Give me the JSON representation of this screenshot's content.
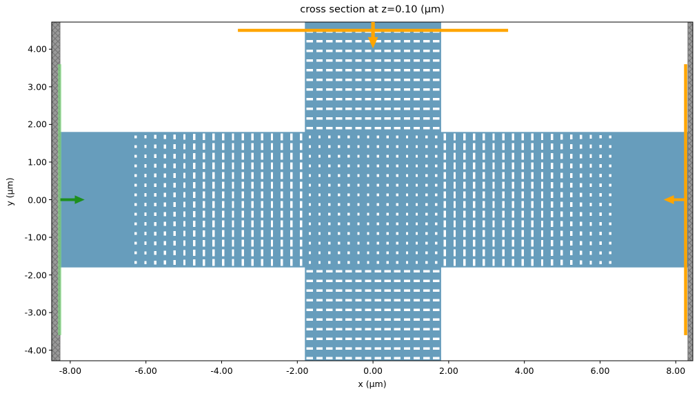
{
  "chart_data": {
    "type": "heatmap",
    "subtype": "fdtd-simulation-cross-section",
    "title": "cross section at z=0.10 (μm)",
    "xlabel": "x (μm)",
    "ylabel": "y (μm)",
    "xlim": [
      -8.49,
      8.45
    ],
    "ylim": [
      -4.28,
      4.72
    ],
    "grid": false,
    "x_ticks": [
      {
        "value": -8,
        "label": "-8.00"
      },
      {
        "value": -6,
        "label": "-6.00"
      },
      {
        "value": -4,
        "label": "-4.00"
      },
      {
        "value": -2,
        "label": "-2.00"
      },
      {
        "value": 0,
        "label": "0.00"
      },
      {
        "value": 2,
        "label": "2.00"
      },
      {
        "value": 4,
        "label": "4.00"
      },
      {
        "value": 6,
        "label": "6.00"
      },
      {
        "value": 8,
        "label": "8.00"
      }
    ],
    "y_ticks": [
      {
        "value": -4,
        "label": "-4.00"
      },
      {
        "value": -3,
        "label": "-3.00"
      },
      {
        "value": -2,
        "label": "-2.00"
      },
      {
        "value": -1,
        "label": "-1.00"
      },
      {
        "value": 0,
        "label": "0.00"
      },
      {
        "value": 1,
        "label": "1.00"
      },
      {
        "value": 2,
        "label": "2.00"
      },
      {
        "value": 3,
        "label": "3.00"
      },
      {
        "value": 4,
        "label": "4.00"
      }
    ],
    "colors": {
      "background": "#ffffff",
      "slab": "#679dbc",
      "hole": "#ffffff",
      "pml_fill": "#9a9a9a",
      "pml_hatch": "#757575",
      "source_plane": "#7fd87f",
      "source_arrow": "#1e8f1e",
      "monitor": "#ffa500",
      "spine": "#000000"
    },
    "structure": {
      "horizontal_slab": {
        "x_range": [
          -8.49,
          8.45
        ],
        "y_range": [
          -1.8,
          1.8
        ]
      },
      "vertical_slab": {
        "x_range": [
          -1.8,
          1.8
        ],
        "y_range": [
          -4.28,
          4.72
        ]
      },
      "lattice_period_um": 0.257,
      "inner_offset_um": 0.128,
      "inner_count": 7,
      "arm_start_um": 1.9,
      "arm_column_count": 18,
      "vertical_row_count": 11,
      "center_hole_um": {
        "w": 0.06,
        "h": 0.07
      },
      "horizontal_arm_hole_um": {
        "w": 0.062,
        "h_max": 0.185,
        "h_min": 0.07,
        "taper_start_um": 4.3,
        "taper_end_um": 6.27
      },
      "vertical_arm_hole_um": {
        "w": 0.17,
        "h": 0.06
      }
    },
    "pml_layers": [
      {
        "name": "pml-left",
        "x_range": [
          -8.49,
          -8.27
        ]
      },
      {
        "name": "pml-right",
        "x_range": [
          8.32,
          8.45
        ]
      }
    ],
    "overlays": [
      {
        "name": "mode-source-plane",
        "kind": "source-plane",
        "orientation": "vertical",
        "x": -8.28,
        "span": [
          -3.6,
          3.6
        ],
        "color": "#7fd87f",
        "opacity": 0.65,
        "thickness_um": 0.09,
        "arrow": {
          "name": "mode-source-arrow",
          "direction": "right",
          "x": -8.26,
          "y": 0,
          "color": "#1e8f1e",
          "length_um": 0.64,
          "shaft_w_um": 0.075,
          "head_w_um": 0.23,
          "head_len_um": 0.26
        }
      },
      {
        "name": "monitor-plane-right",
        "kind": "monitor-plane",
        "orientation": "vertical",
        "x": 8.26,
        "span": [
          -3.6,
          3.6
        ],
        "color": "#ffa500",
        "opacity": 1,
        "thickness_um": 0.082,
        "arrow": {
          "name": "monitor-right-arrow",
          "direction": "left",
          "x": 8.3,
          "y": 0,
          "color": "#ffa500",
          "length_um": 0.62,
          "shaft_w_um": 0.075,
          "head_w_um": 0.24,
          "head_len_um": 0.27
        }
      },
      {
        "name": "monitor-plane-top",
        "kind": "monitor-plane",
        "orientation": "horizontal",
        "y": 4.5,
        "span": [
          -3.57,
          3.57
        ],
        "color": "#ffa500",
        "opacity": 1,
        "thickness_um": 0.082,
        "arrow": {
          "name": "monitor-top-arrow",
          "direction": "down",
          "x": 0,
          "y": 4.72,
          "color": "#ffa500",
          "length_um": 0.7,
          "shaft_w_um": 0.095,
          "head_w_um": 0.27,
          "head_len_um": 0.3
        }
      }
    ]
  }
}
